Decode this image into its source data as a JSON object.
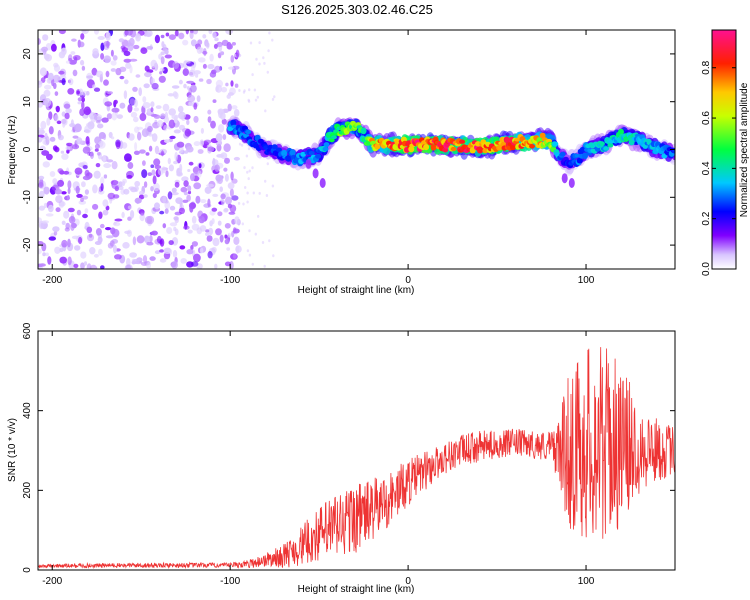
{
  "title": "S126.2025.303.02.46.C25",
  "chart_data": [
    {
      "type": "heatmap",
      "title": "S126.2025.303.02.46.C25",
      "xlabel": "Height of straight line (km)",
      "ylabel": "Frequency (Hz)",
      "xlim": [
        -208,
        150
      ],
      "ylim": [
        -25,
        25
      ],
      "xticks": [
        -200,
        -100,
        0,
        100
      ],
      "yticks": [
        -20,
        -10,
        0,
        10,
        20
      ],
      "xtick_labels": [
        "-200",
        "-100",
        "0",
        "100"
      ],
      "ytick_labels": [
        "-20",
        "-10",
        "0",
        "10",
        "20"
      ],
      "colorbar": {
        "label": "Normalized spectral amplitude",
        "range": [
          0,
          0.95
        ],
        "ticks": [
          0.0,
          0.2,
          0.4,
          0.6,
          0.8
        ],
        "tick_labels": [
          "0.0",
          "0.2",
          "0.4",
          "0.6",
          "0.8"
        ],
        "colors": [
          "#ffffff",
          "#c8a8ff",
          "#7a00ff",
          "#0000ff",
          "#00ffff",
          "#00ff00",
          "#ffff00",
          "#ff8000",
          "#ff0000",
          "#ff00ff"
        ]
      },
      "ridge": {
        "x": [
          -100,
          -90,
          -80,
          -70,
          -60,
          -50,
          -45,
          -40,
          -30,
          -25,
          -20,
          -10,
          0,
          20,
          40,
          60,
          80,
          85,
          90,
          95,
          100,
          110,
          120,
          130,
          140,
          150
        ],
        "y": [
          5,
          3,
          0,
          -1,
          -2,
          -1,
          2,
          4,
          5,
          3,
          1,
          1,
          1,
          1,
          0.5,
          1.5,
          2,
          -1,
          -3,
          -2,
          0,
          1,
          3,
          2,
          0,
          -1
        ],
        "amplitude": [
          0.35,
          0.3,
          0.25,
          0.3,
          0.35,
          0.35,
          0.45,
          0.55,
          0.6,
          0.5,
          0.75,
          0.85,
          0.9,
          0.92,
          0.9,
          0.85,
          0.7,
          0.3,
          0.25,
          0.3,
          0.35,
          0.4,
          0.45,
          0.4,
          0.35,
          0.3
        ]
      },
      "noise_region_x": [
        -208,
        -95
      ]
    },
    {
      "type": "line",
      "xlabel": "Height of straight line (km)",
      "ylabel": "SNR (10 * v/v)",
      "xlim": [
        -208,
        150
      ],
      "ylim": [
        0,
        600
      ],
      "xticks": [
        -200,
        -100,
        0,
        100
      ],
      "yticks": [
        0,
        200,
        400,
        600
      ],
      "xtick_labels": [
        "-200",
        "-100",
        "0",
        "100"
      ],
      "ytick_labels": [
        "0",
        "200",
        "400",
        "600"
      ],
      "color": "#ee3333",
      "envelope": {
        "x": [
          -208,
          -150,
          -100,
          -90,
          -80,
          -70,
          -60,
          -50,
          -40,
          -30,
          -20,
          -10,
          0,
          10,
          20,
          30,
          40,
          50,
          60,
          70,
          80,
          85,
          90,
          100,
          110,
          120,
          130,
          140,
          150
        ],
        "mean": [
          10,
          12,
          12,
          15,
          25,
          35,
          60,
          90,
          110,
          130,
          150,
          180,
          220,
          250,
          280,
          300,
          310,
          315,
          320,
          315,
          310,
          300,
          300,
          320,
          320,
          310,
          310,
          300,
          300
        ],
        "spread": [
          5,
          6,
          6,
          10,
          18,
          30,
          50,
          70,
          90,
          90,
          80,
          70,
          60,
          50,
          40,
          40,
          40,
          35,
          35,
          35,
          40,
          80,
          200,
          250,
          250,
          200,
          120,
          80,
          60
        ]
      }
    }
  ]
}
